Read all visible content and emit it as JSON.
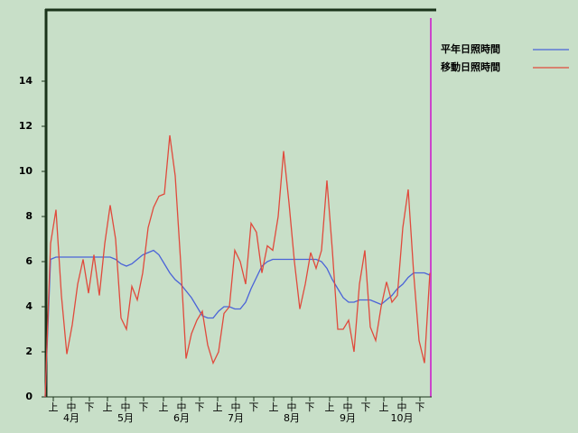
{
  "chart_data": {
    "type": "line",
    "x": [
      0,
      3,
      6,
      9,
      12,
      15,
      18,
      21,
      24,
      27,
      30,
      33,
      36,
      39,
      42,
      45,
      48,
      51,
      54,
      57,
      60,
      63,
      66,
      69,
      72,
      75,
      78,
      81,
      84,
      87,
      90,
      93,
      96,
      99,
      102,
      105,
      108,
      111,
      114,
      117,
      120,
      123,
      126,
      129,
      132,
      135,
      138,
      141,
      144,
      147,
      150,
      153,
      156,
      159,
      162,
      165,
      168,
      171,
      174,
      177,
      180,
      183,
      186,
      189,
      192,
      195,
      198,
      201,
      204,
      207,
      210,
      213
    ],
    "series": [
      {
        "name": "平年日照時間",
        "color": "#4a63d8",
        "values": [
          0,
          6.1,
          6.2,
          6.2,
          6.2,
          6.2,
          6.2,
          6.2,
          6.2,
          6.2,
          6.2,
          6.2,
          6.2,
          6.1,
          5.9,
          5.8,
          5.9,
          6.1,
          6.3,
          6.4,
          6.5,
          6.3,
          5.9,
          5.5,
          5.2,
          5.0,
          4.7,
          4.4,
          4.0,
          3.6,
          3.5,
          3.5,
          3.8,
          4.0,
          4.0,
          3.9,
          3.9,
          4.2,
          4.8,
          5.3,
          5.8,
          6.0,
          6.1,
          6.1,
          6.1,
          6.1,
          6.1,
          6.1,
          6.1,
          6.1,
          6.1,
          6.0,
          5.7,
          5.2,
          4.8,
          4.4,
          4.2,
          4.2,
          4.3,
          4.3,
          4.3,
          4.2,
          4.1,
          4.3,
          4.5,
          4.8,
          5.0,
          5.3,
          5.5,
          5.5,
          5.5,
          5.4
        ]
      },
      {
        "name": "移動日照時間",
        "color": "#e04a3c",
        "values": [
          0,
          6.8,
          8.3,
          4.5,
          1.9,
          3.2,
          5.0,
          6.1,
          4.6,
          6.3,
          4.5,
          6.8,
          8.5,
          7.0,
          3.5,
          3.0,
          4.9,
          4.3,
          5.5,
          7.5,
          8.4,
          8.9,
          9.0,
          11.6,
          9.8,
          6.0,
          1.7,
          2.8,
          3.4,
          3.8,
          2.3,
          1.5,
          2.0,
          3.7,
          4.0,
          6.5,
          6.0,
          5.0,
          7.7,
          7.3,
          5.5,
          6.7,
          6.5,
          8.0,
          10.9,
          8.6,
          6.0,
          3.9,
          5.0,
          6.4,
          5.7,
          6.5,
          9.6,
          6.5,
          3.0,
          3.0,
          3.4,
          2.0,
          5.0,
          6.5,
          3.1,
          2.5,
          4.0,
          5.1,
          4.2,
          4.5,
          7.5,
          9.2,
          5.5,
          2.5,
          1.5,
          5.5
        ]
      }
    ],
    "xlim": [
      0,
      214
    ],
    "xticks": [
      {
        "value": 4.5,
        "label": "上"
      },
      {
        "value": 14.5,
        "label": "中"
      },
      {
        "value": 24.5,
        "label": "下"
      },
      {
        "value": 34.5,
        "label": "上"
      },
      {
        "value": 44.5,
        "label": "中"
      },
      {
        "value": 54.5,
        "label": "下"
      },
      {
        "value": 65.5,
        "label": "上"
      },
      {
        "value": 75.5,
        "label": "中"
      },
      {
        "value": 85.5,
        "label": "下"
      },
      {
        "value": 95.5,
        "label": "上"
      },
      {
        "value": 105.5,
        "label": "中"
      },
      {
        "value": 115.5,
        "label": "下"
      },
      {
        "value": 126.5,
        "label": "上"
      },
      {
        "value": 136.5,
        "label": "中"
      },
      {
        "value": 146.5,
        "label": "下"
      },
      {
        "value": 157.5,
        "label": "上"
      },
      {
        "value": 167.5,
        "label": "中"
      },
      {
        "value": 177.5,
        "label": "下"
      },
      {
        "value": 187.5,
        "label": "上"
      },
      {
        "value": 197.5,
        "label": "中"
      },
      {
        "value": 207.5,
        "label": "下"
      }
    ],
    "month_labels": [
      {
        "value": 14.5,
        "label": "4月"
      },
      {
        "value": 44.5,
        "label": "5月"
      },
      {
        "value": 75.5,
        "label": "6月"
      },
      {
        "value": 105.5,
        "label": "7月"
      },
      {
        "value": 136.5,
        "label": "8月"
      },
      {
        "value": 167.5,
        "label": "9月"
      },
      {
        "value": 197.5,
        "label": "10月"
      }
    ],
    "ylim": [
      0,
      17.2
    ],
    "yticks": [
      0,
      2,
      4,
      6,
      8,
      10,
      12,
      14
    ],
    "legend": "right"
  }
}
